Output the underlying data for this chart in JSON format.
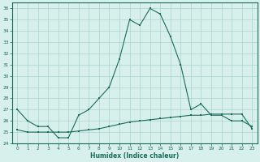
{
  "line1_x": [
    0,
    1,
    2,
    3,
    4,
    5,
    6,
    7,
    8,
    9,
    10,
    11,
    12,
    13,
    14,
    15,
    16,
    17,
    18,
    19,
    20,
    21,
    22,
    23
  ],
  "line1_y": [
    27,
    26,
    25.5,
    25.5,
    24.5,
    24.5,
    26.5,
    27,
    28,
    29,
    31.5,
    35,
    34.5,
    36,
    35.5,
    33.5,
    31,
    27,
    27.5,
    26.5,
    26.5,
    26,
    26,
    25.5
  ],
  "line2_x": [
    0,
    1,
    2,
    3,
    4,
    5,
    6,
    7,
    8,
    9,
    10,
    11,
    12,
    13,
    14,
    15,
    16,
    17,
    18,
    19,
    20,
    21,
    22,
    23
  ],
  "line2_y": [
    25.2,
    25.0,
    25.0,
    25.0,
    25.0,
    25.0,
    25.1,
    25.2,
    25.3,
    25.5,
    25.7,
    25.9,
    26.0,
    26.1,
    26.2,
    26.3,
    26.4,
    26.5,
    26.5,
    26.6,
    26.6,
    26.6,
    26.6,
    25.3
  ],
  "line_color": "#1a6b5a",
  "bg_color": "#d8f0ec",
  "grid_color": "#aad4cc",
  "xlabel": "Humidex (Indice chaleur)",
  "ylim": [
    24,
    36.5
  ],
  "xlim": [
    -0.5,
    23.5
  ],
  "yticks": [
    24,
    25,
    26,
    27,
    28,
    29,
    30,
    31,
    32,
    33,
    34,
    35,
    36
  ],
  "xticks": [
    0,
    1,
    2,
    3,
    4,
    5,
    6,
    7,
    8,
    9,
    10,
    11,
    12,
    13,
    14,
    15,
    16,
    17,
    18,
    19,
    20,
    21,
    22,
    23
  ]
}
